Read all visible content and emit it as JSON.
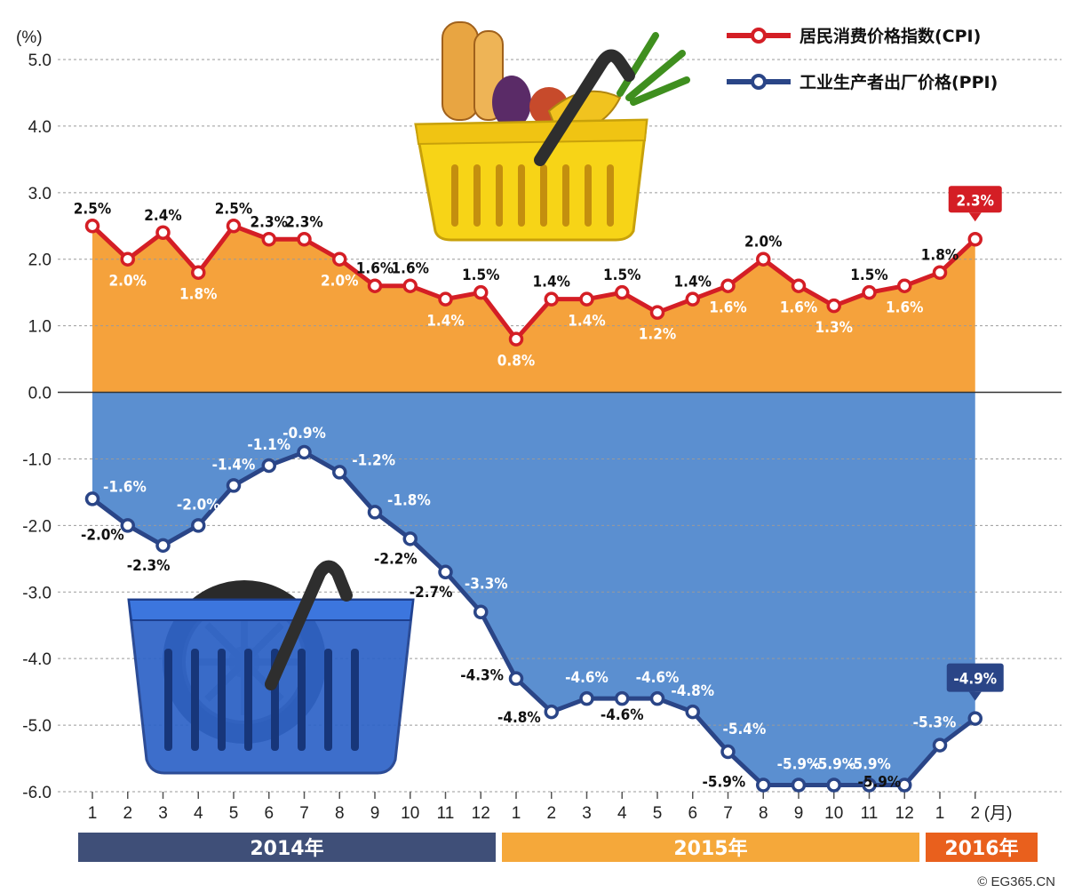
{
  "chart_data": {
    "type": "line",
    "unit_label": "(%)",
    "month_suffix": "(月)",
    "ylim": [
      -6,
      5
    ],
    "yticks": [
      "5.0",
      "4.0",
      "3.0",
      "2.0",
      "1.0",
      "0.0",
      "-1.0",
      "-2.0",
      "-3.0",
      "-4.0",
      "-5.0",
      "-6.0"
    ],
    "grid": "horizontal-dashed",
    "legend_position": "top-right",
    "x_categories": [
      "1",
      "2",
      "3",
      "4",
      "5",
      "6",
      "7",
      "8",
      "9",
      "10",
      "11",
      "12",
      "1",
      "2",
      "3",
      "4",
      "5",
      "6",
      "7",
      "8",
      "9",
      "10",
      "11",
      "12",
      "1",
      "2"
    ],
    "years": [
      {
        "label": "2014年",
        "color": "#3f4f78"
      },
      {
        "label": "2015年",
        "color": "#f5a83a"
      },
      {
        "label": "2016年",
        "color": "#e9601d"
      }
    ],
    "series": [
      {
        "name": "居民消费价格指数(CPI)",
        "color": "#d41e25",
        "fill": "#f5a23c",
        "values": [
          2.5,
          2.0,
          2.4,
          1.8,
          2.5,
          2.3,
          2.3,
          2.0,
          1.6,
          1.6,
          1.4,
          1.5,
          0.8,
          1.4,
          1.4,
          1.5,
          1.2,
          1.4,
          1.6,
          2.0,
          1.6,
          1.3,
          1.5,
          1.6,
          1.8,
          2.3
        ],
        "labels": [
          "2.5%",
          "2.0%",
          "2.4%",
          "1.8%",
          "2.5%",
          "2.3%",
          "2.3%",
          "2.0%",
          "1.6%",
          "1.6%",
          "1.4%",
          "1.5%",
          "0.8%",
          "1.4%",
          "1.4%",
          "1.5%",
          "1.2%",
          "1.4%",
          "1.6%",
          "2.0%",
          "1.6%",
          "1.3%",
          "1.5%",
          "1.6%",
          "1.8%",
          "2.3%"
        ]
      },
      {
        "name": "工业生产者出厂价格(PPI)",
        "color": "#2a4587",
        "fill": "#5b8fd0",
        "values": [
          -1.6,
          -2.0,
          -2.3,
          -2.0,
          -1.4,
          -1.1,
          -0.9,
          -1.2,
          -1.8,
          -2.2,
          -2.7,
          -3.3,
          -4.3,
          -4.8,
          -4.6,
          -4.6,
          -4.6,
          -4.8,
          -5.4,
          -5.9,
          -5.9,
          -5.9,
          -5.9,
          -5.9,
          -5.3,
          -4.9
        ],
        "labels": [
          "-1.6%",
          "-2.0%",
          "-2.3%",
          "-2.0%",
          "-1.4%",
          "-1.1%",
          "-0.9%",
          "-1.2%",
          "-1.8%",
          "-2.2%",
          "-2.7%",
          "-3.3%",
          "-4.3%",
          "-4.8%",
          "-4.6%",
          "-4.6%",
          "-4.6%",
          "-4.8%",
          "-5.4%",
          "-5.9%",
          "-5.9%",
          "-5.9%",
          "-5.9%",
          "-5.9%",
          "-5.3%",
          "-4.9%"
        ]
      }
    ]
  },
  "source": "© EG365.CN"
}
